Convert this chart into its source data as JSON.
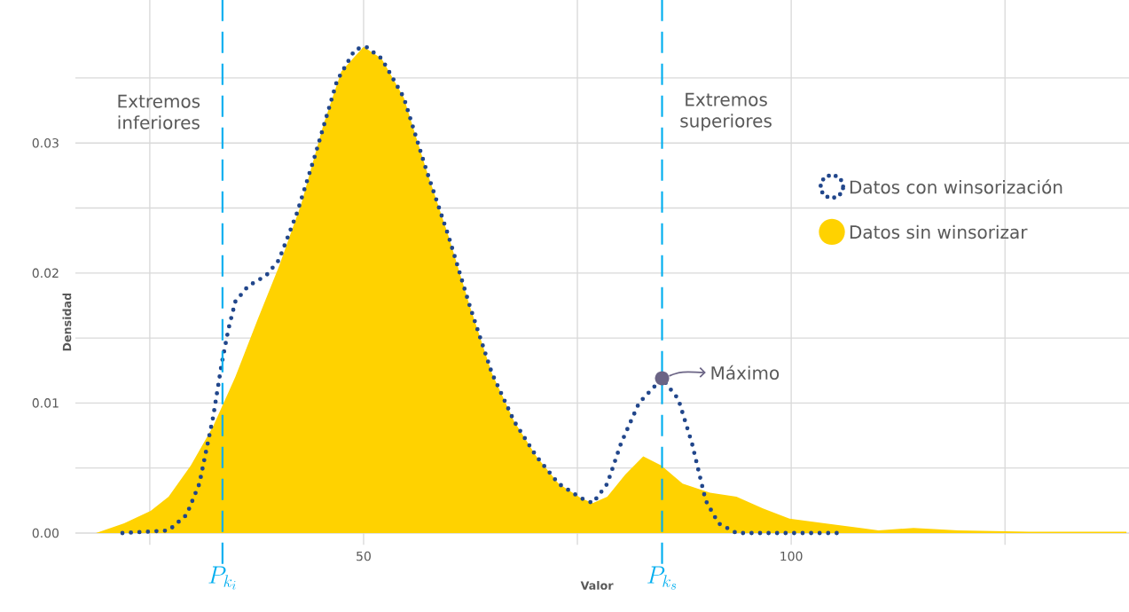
{
  "chart_data": {
    "type": "area",
    "xlabel": "Valor",
    "ylabel": "Densidad",
    "xlim": [
      16.3,
      139.5
    ],
    "ylim": [
      0,
      0.041
    ],
    "xticks": [
      {
        "value": 25,
        "label": null
      },
      50,
      {
        "value": 75,
        "label": null
      },
      100,
      {
        "value": 125,
        "label": null
      }
    ],
    "yticks": [
      {
        "value": 0,
        "label": "0.00"
      },
      {
        "value": 0.005,
        "label": null
      },
      0.01,
      {
        "value": 0.015,
        "label": null
      },
      0.02,
      {
        "value": 0.025,
        "label": null
      },
      0.03,
      {
        "value": 0.035,
        "label": null
      }
    ],
    "grid": true,
    "legend": "top right",
    "series": [
      {
        "name": "Datos con winsorización",
        "type": "line",
        "line_style": "dotted",
        "color": "#21468b",
        "x": [
          21.8,
          27.2,
          29.3,
          30.8,
          32.4,
          33.4,
          34.2,
          35.0,
          36.5,
          38.6,
          40.1,
          42.2,
          44.3,
          46.9,
          49.0,
          50.3,
          52.1,
          54.7,
          57.3,
          59.9,
          62.4,
          65.0,
          67.6,
          70.2,
          72.8,
          75.4,
          76.8,
          78.5,
          80.1,
          82.2,
          84.9,
          86.8,
          88.4,
          90.0,
          91.5,
          93.6,
          106.0
        ],
        "values": [
          0,
          0.0002,
          0.0014,
          0.0038,
          0.0089,
          0.013,
          0.0157,
          0.0178,
          0.019,
          0.0198,
          0.021,
          0.0246,
          0.029,
          0.0348,
          0.0372,
          0.0374,
          0.0365,
          0.0335,
          0.028,
          0.0229,
          0.0175,
          0.0123,
          0.0086,
          0.0059,
          0.0038,
          0.0027,
          0.0023,
          0.0038,
          0.0069,
          0.01,
          0.0119,
          0.0103,
          0.0069,
          0.0025,
          0.00075,
          0,
          0
        ]
      },
      {
        "name": "Datos sin winsorizar",
        "color": "#ffd200",
        "x": [
          18.7,
          22.0,
          25.1,
          27.2,
          29.8,
          32.4,
          35.0,
          37.6,
          40.1,
          42.7,
          45.3,
          47.4,
          50.0,
          52.1,
          54.7,
          57.3,
          59.9,
          62.4,
          65.0,
          67.6,
          70.2,
          72.8,
          75.4,
          76.8,
          78.5,
          80.6,
          82.7,
          84.8,
          87.3,
          90.5,
          93.6,
          96.7,
          99.8,
          103.9,
          108.1,
          110.2,
          114.3,
          119.5,
          127.8,
          134.0,
          139.2
        ],
        "values": [
          0,
          0.00075,
          0.0017,
          0.0028,
          0.0052,
          0.0082,
          0.012,
          0.0164,
          0.0205,
          0.0253,
          0.0314,
          0.0355,
          0.0374,
          0.0365,
          0.0335,
          0.028,
          0.0229,
          0.0175,
          0.0123,
          0.0086,
          0.0059,
          0.0038,
          0.0027,
          0.0023,
          0.0028,
          0.0045,
          0.0059,
          0.0052,
          0.0038,
          0.0031,
          0.0028,
          0.0019,
          0.0011,
          0.00075,
          0.0004,
          0.0002,
          0.0004,
          0.0002,
          0.0001,
          0.0001,
          0.0001
        ]
      }
    ],
    "ref_lines": [
      {
        "axis": "x",
        "value": 33.5,
        "label": "P_{k_i}",
        "color": "#00aeef",
        "line_style": "dashed"
      },
      {
        "axis": "x",
        "value": 84.9,
        "label": "P_{k_s}",
        "color": "#00aeef",
        "line_style": "dashed"
      }
    ],
    "annotations": [
      "Extremos inferiores",
      "Extremos superiores",
      {
        "text": "Máximo",
        "x": 84.9,
        "y": 0.0119
      }
    ]
  }
}
